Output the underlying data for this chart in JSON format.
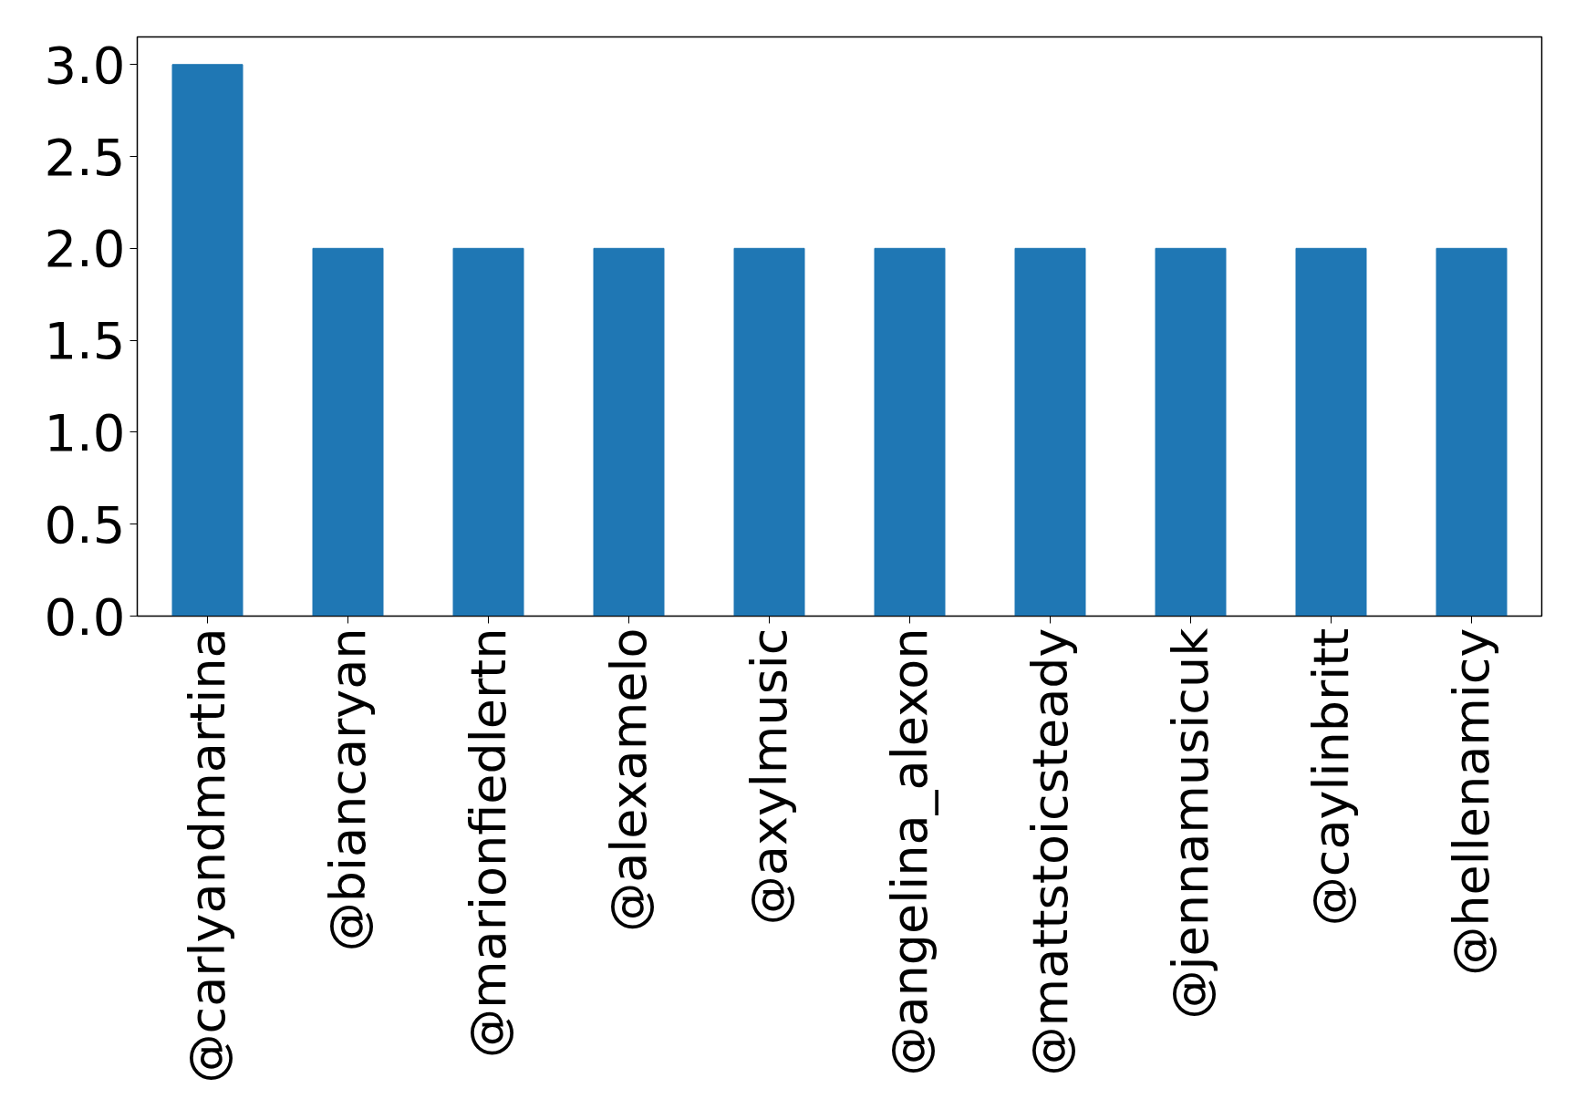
{
  "chart_data": {
    "type": "bar",
    "categories": [
      "@carlyandmartina",
      "@biancaryan",
      "@marionfiedlertn",
      "@alexamelo",
      "@axylmusic",
      "@angelina_alexon",
      "@mattstoicsteady",
      "@jennamusicuk",
      "@caylinbritt",
      "@hellenamicy"
    ],
    "values": [
      3,
      2,
      2,
      2,
      2,
      2,
      2,
      2,
      2,
      2
    ],
    "color": "#1f77b4",
    "ylim": [
      0,
      3.15
    ],
    "yticks": [
      {
        "value": 0,
        "label": "0.0"
      },
      {
        "value": 0.5,
        "label": "0.5"
      },
      {
        "value": 1,
        "label": "1.0"
      },
      {
        "value": 1.5,
        "label": "1.5"
      },
      {
        "value": 2,
        "label": "2.0"
      },
      {
        "value": 2.5,
        "label": "2.5"
      },
      {
        "value": 3,
        "label": "3.0"
      }
    ],
    "grid": false
  }
}
